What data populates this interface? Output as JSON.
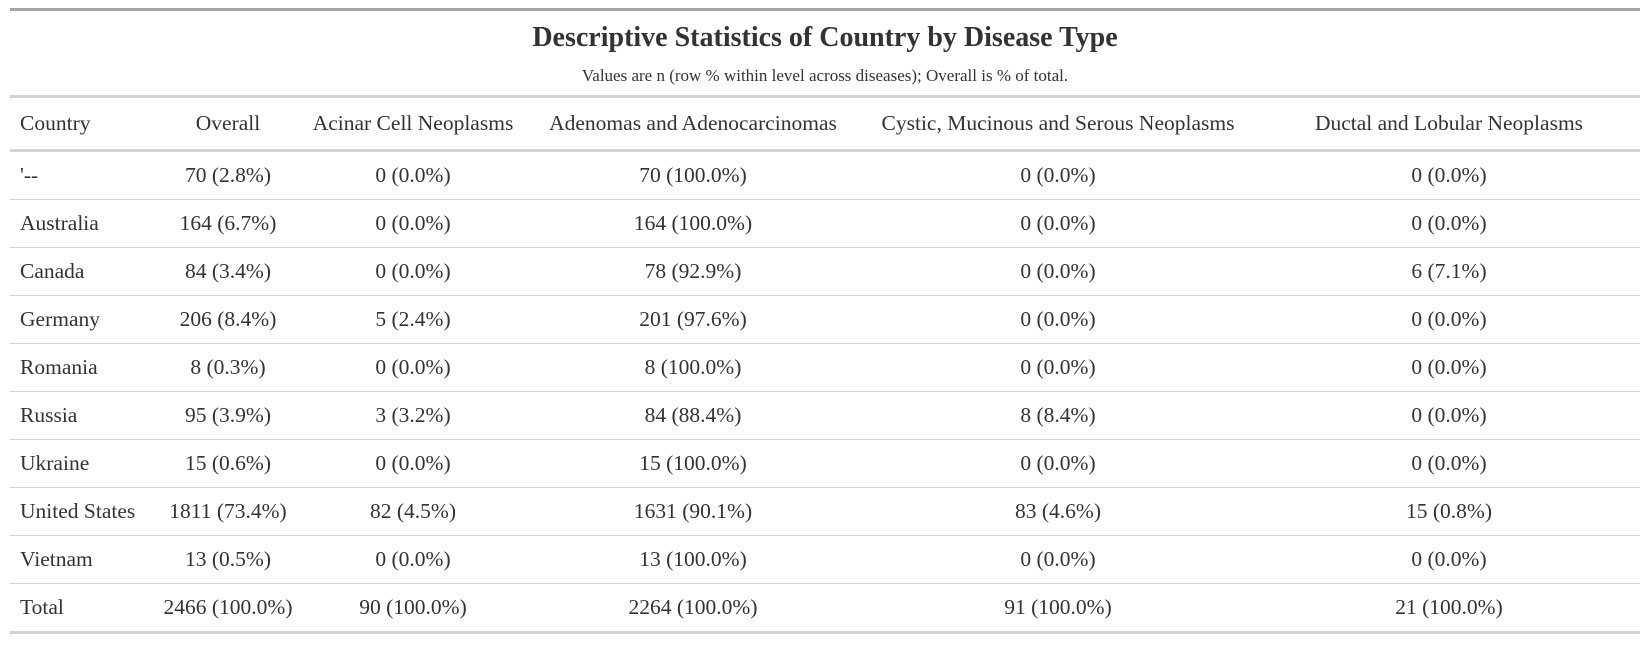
{
  "title": "Descriptive Statistics of Country by Disease Type",
  "subtitle": "Values are n (row % within level across diseases); Overall is % of total.",
  "columns": [
    "Country",
    "Overall",
    "Acinar Cell Neoplasms",
    "Adenomas and Adenocarcinomas",
    "Cystic, Mucinous and Serous Neoplasms",
    "Ductal and Lobular Neoplasms"
  ],
  "rows": [
    [
      "'--",
      "70 (2.8%)",
      "0 (0.0%)",
      "70 (100.0%)",
      "0 (0.0%)",
      "0 (0.0%)"
    ],
    [
      "Australia",
      "164 (6.7%)",
      "0 (0.0%)",
      "164 (100.0%)",
      "0 (0.0%)",
      "0 (0.0%)"
    ],
    [
      "Canada",
      "84 (3.4%)",
      "0 (0.0%)",
      "78 (92.9%)",
      "0 (0.0%)",
      "6 (7.1%)"
    ],
    [
      "Germany",
      "206 (8.4%)",
      "5 (2.4%)",
      "201 (97.6%)",
      "0 (0.0%)",
      "0 (0.0%)"
    ],
    [
      "Romania",
      "8 (0.3%)",
      "0 (0.0%)",
      "8 (100.0%)",
      "0 (0.0%)",
      "0 (0.0%)"
    ],
    [
      "Russia",
      "95 (3.9%)",
      "3 (3.2%)",
      "84 (88.4%)",
      "8 (8.4%)",
      "0 (0.0%)"
    ],
    [
      "Ukraine",
      "15 (0.6%)",
      "0 (0.0%)",
      "15 (100.0%)",
      "0 (0.0%)",
      "0 (0.0%)"
    ],
    [
      "United States",
      "1811 (73.4%)",
      "82 (4.5%)",
      "1631 (90.1%)",
      "83 (4.6%)",
      "15 (0.8%)"
    ],
    [
      "Vietnam",
      "13 (0.5%)",
      "0 (0.0%)",
      "13 (100.0%)",
      "0 (0.0%)",
      "0 (0.0%)"
    ],
    [
      "Total",
      "2466 (100.0%)",
      "90 (100.0%)",
      "2264 (100.0%)",
      "91 (100.0%)",
      "21 (100.0%)"
    ]
  ]
}
